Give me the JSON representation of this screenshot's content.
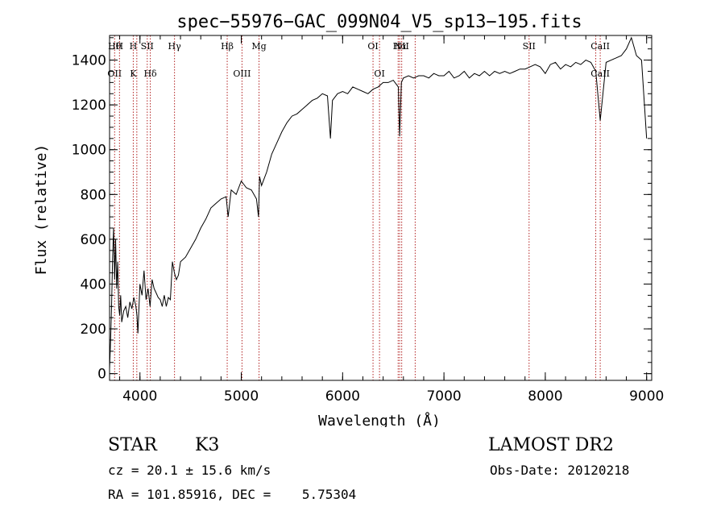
{
  "chart_data": {
    "type": "line",
    "title": "spec−55976−GAC_099N04_V5_sp13−195.fits",
    "xlabel": "Wavelength (Å)",
    "ylabel": "Flux (relative)",
    "xlim": [
      3700,
      9050
    ],
    "ylim": [
      -30,
      1510
    ],
    "xticks": [
      4000,
      5000,
      6000,
      7000,
      8000,
      9000
    ],
    "yticks": [
      0,
      200,
      400,
      600,
      800,
      1000,
      1200,
      1400
    ],
    "grid": false,
    "line_color": "#000000",
    "marker_color": "#b22222",
    "series": [
      {
        "x": [
          3700,
          3710,
          3720,
          3730,
          3740,
          3750,
          3760,
          3770,
          3780,
          3790,
          3800,
          3810,
          3820,
          3840,
          3860,
          3880,
          3900,
          3920,
          3940,
          3960,
          3970,
          3980,
          4000,
          4020,
          4040,
          4060,
          4080,
          4100,
          4120,
          4140,
          4160,
          4180,
          4200,
          4220,
          4240,
          4260,
          4280,
          4300,
          4320,
          4340,
          4360,
          4380,
          4400,
          4450,
          4500,
          4550,
          4600,
          4650,
          4700,
          4750,
          4800,
          4850,
          4870,
          4900,
          4950,
          5000,
          5050,
          5100,
          5150,
          5170,
          5180,
          5200,
          5250,
          5300,
          5350,
          5400,
          5450,
          5500,
          5550,
          5600,
          5650,
          5700,
          5750,
          5800,
          5850,
          5880,
          5900,
          5950,
          6000,
          6050,
          6100,
          6150,
          6200,
          6250,
          6300,
          6350,
          6400,
          6450,
          6500,
          6550,
          6563,
          6580,
          6600,
          6650,
          6700,
          6750,
          6800,
          6850,
          6900,
          6950,
          7000,
          7050,
          7100,
          7150,
          7200,
          7250,
          7300,
          7350,
          7400,
          7450,
          7500,
          7550,
          7600,
          7650,
          7700,
          7750,
          7800,
          7850,
          7900,
          7950,
          8000,
          8050,
          8100,
          8150,
          8200,
          8250,
          8300,
          8350,
          8400,
          8450,
          8498,
          8542,
          8600,
          8650,
          8700,
          8750,
          8800,
          8830,
          8850,
          8900,
          8950,
          9000
        ],
        "y": [
          20,
          150,
          300,
          520,
          650,
          420,
          600,
          380,
          500,
          300,
          260,
          350,
          230,
          280,
          300,
          250,
          320,
          290,
          340,
          300,
          260,
          180,
          400,
          350,
          460,
          330,
          380,
          300,
          420,
          380,
          360,
          340,
          330,
          300,
          350,
          300,
          340,
          330,
          500,
          450,
          420,
          440,
          500,
          520,
          560,
          600,
          650,
          690,
          740,
          760,
          780,
          790,
          700,
          820,
          800,
          860,
          830,
          820,
          780,
          700,
          880,
          840,
          900,
          980,
          1030,
          1080,
          1120,
          1150,
          1160,
          1180,
          1200,
          1220,
          1230,
          1250,
          1240,
          1050,
          1220,
          1250,
          1260,
          1250,
          1280,
          1270,
          1260,
          1250,
          1270,
          1280,
          1300,
          1300,
          1310,
          1280,
          1060,
          1300,
          1320,
          1330,
          1320,
          1330,
          1330,
          1320,
          1340,
          1330,
          1330,
          1350,
          1320,
          1330,
          1350,
          1320,
          1340,
          1330,
          1350,
          1330,
          1350,
          1340,
          1350,
          1340,
          1350,
          1360,
          1360,
          1370,
          1380,
          1370,
          1340,
          1380,
          1390,
          1360,
          1380,
          1370,
          1390,
          1380,
          1400,
          1390,
          1350,
          1130,
          1390,
          1400,
          1410,
          1420,
          1450,
          1480,
          1500,
          1420,
          1400,
          1050
        ]
      }
    ],
    "line_markers": [
      {
        "wave": 3750,
        "top": "Hθ",
        "bottom": "OII"
      },
      {
        "wave": 3798,
        "top": "H",
        "bottom": ""
      },
      {
        "wave": 3934,
        "top": "H",
        "bottom": "K"
      },
      {
        "wave": 3969,
        "top": "",
        "bottom": ""
      },
      {
        "wave": 4072,
        "top": "SII",
        "bottom": ""
      },
      {
        "wave": 4102,
        "top": "",
        "bottom": "Hδ"
      },
      {
        "wave": 4341,
        "top": "Hγ",
        "bottom": ""
      },
      {
        "wave": 4861,
        "top": "Hβ",
        "bottom": ""
      },
      {
        "wave": 5007,
        "top": "",
        "bottom": "OIII"
      },
      {
        "wave": 5175,
        "top": "Mg",
        "bottom": ""
      },
      {
        "wave": 6300,
        "top": "OI",
        "bottom": ""
      },
      {
        "wave": 6364,
        "top": "",
        "bottom": "OI"
      },
      {
        "wave": 6548,
        "top": "",
        "bottom": ""
      },
      {
        "wave": 6563,
        "top": "Hα",
        "bottom": ""
      },
      {
        "wave": 6583,
        "top": "NII",
        "bottom": ""
      },
      {
        "wave": 6716,
        "top": "",
        "bottom": ""
      },
      {
        "wave": 7840,
        "top": "SII",
        "bottom": ""
      },
      {
        "wave": 8498,
        "top": "",
        "bottom": ""
      },
      {
        "wave": 8542,
        "top": "CaII",
        "bottom": "CaII"
      }
    ]
  },
  "info": {
    "object_type": "STAR",
    "subclass": "K3",
    "survey": "LAMOST DR2",
    "cz": "cz = 20.1 ± 15.6 km/s",
    "obs_date": "Obs-Date: 20120218",
    "coords": "RA = 101.85916, DEC =    5.75304"
  }
}
